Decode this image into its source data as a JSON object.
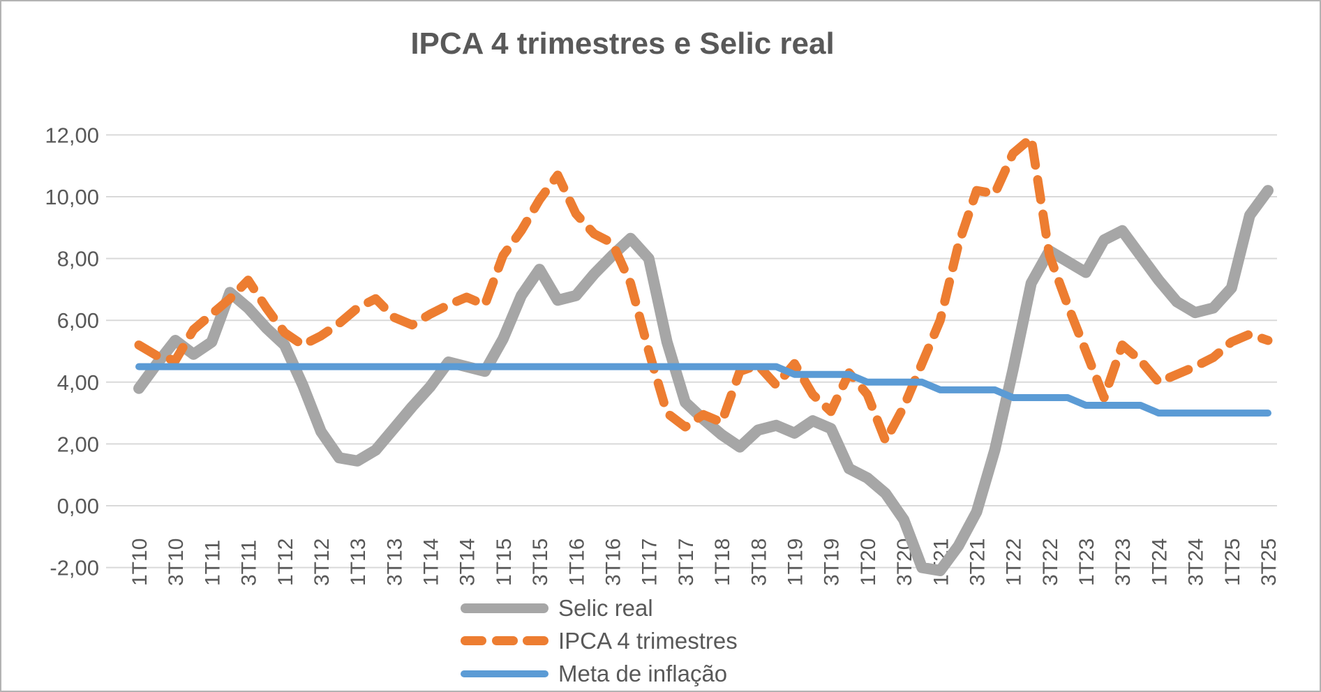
{
  "title": "IPCA 4 trimestres e Selic real",
  "colors": {
    "background": "#ffffff",
    "frame_border": "#b3b3b3",
    "grid": "#d9d9d9",
    "text": "#595959",
    "selic_real": "#a6a6a6",
    "ipca": "#ed7d31",
    "meta": "#5b9bd5"
  },
  "chart_data": {
    "type": "line",
    "title": "IPCA 4 trimestres e Selic real",
    "grid": true,
    "legend_position": "bottom",
    "ylim": [
      -2,
      12
    ],
    "y_tick_step": 2,
    "y_tick_labels": [
      "-2,00",
      "0,00",
      "2,00",
      "4,00",
      "6,00",
      "8,00",
      "10,00",
      "12,00"
    ],
    "x_label_every": 2,
    "categories": [
      "1T10",
      "2T10",
      "3T10",
      "4T10",
      "1T11",
      "2T11",
      "3T11",
      "4T11",
      "1T12",
      "2T12",
      "3T12",
      "4T12",
      "1T13",
      "2T13",
      "3T13",
      "4T13",
      "1T14",
      "2T14",
      "3T14",
      "4T14",
      "1T15",
      "2T15",
      "3T15",
      "4T15",
      "1T16",
      "2T16",
      "3T16",
      "4T16",
      "1T17",
      "2T17",
      "3T17",
      "4T17",
      "1T18",
      "2T18",
      "3T18",
      "4T18",
      "1T19",
      "2T19",
      "3T19",
      "4T19",
      "1T20",
      "2T20",
      "3T20",
      "4T20",
      "1T21",
      "2T21",
      "3T21",
      "4T21",
      "1T22",
      "2T22",
      "3T22",
      "4T22",
      "1T23",
      "2T23",
      "3T23",
      "4T23",
      "1T24",
      "2T24",
      "3T24",
      "4T24",
      "1T25",
      "2T25",
      "3T25"
    ],
    "series": [
      {
        "name": "Selic real",
        "color": "#a6a6a6",
        "style": "solid",
        "stroke_width": 16,
        "values": [
          3.8,
          4.6,
          5.35,
          4.9,
          5.3,
          6.9,
          6.4,
          5.75,
          5.2,
          3.9,
          2.4,
          1.55,
          1.45,
          1.8,
          2.5,
          3.2,
          3.85,
          4.65,
          4.5,
          4.35,
          5.4,
          6.8,
          7.65,
          6.65,
          6.8,
          7.5,
          8.1,
          8.65,
          8.0,
          5.3,
          3.35,
          2.8,
          2.3,
          1.9,
          2.45,
          2.6,
          2.35,
          2.75,
          2.5,
          1.2,
          0.9,
          0.4,
          -0.45,
          -2.0,
          -2.1,
          -1.3,
          -0.2,
          1.8,
          4.4,
          7.2,
          8.25,
          7.9,
          7.55,
          8.6,
          8.9,
          8.1,
          7.3,
          6.6,
          6.25,
          6.4,
          7.05,
          9.4,
          10.2
        ]
      },
      {
        "name": "IPCA 4 trimestres",
        "color": "#ed7d31",
        "style": "dashed",
        "stroke_width": 13,
        "values": [
          5.2,
          4.85,
          4.7,
          5.7,
          6.2,
          6.7,
          7.3,
          6.4,
          5.6,
          5.2,
          5.5,
          5.9,
          6.4,
          6.7,
          6.1,
          5.85,
          6.2,
          6.5,
          6.75,
          6.5,
          8.1,
          8.9,
          9.9,
          10.7,
          9.45,
          8.8,
          8.5,
          7.2,
          5.0,
          3.0,
          2.55,
          2.95,
          2.7,
          4.35,
          4.55,
          3.9,
          4.6,
          3.6,
          3.05,
          4.3,
          3.6,
          2.1,
          3.2,
          4.6,
          6.0,
          8.45,
          10.2,
          10.1,
          11.4,
          11.9,
          8.1,
          6.5,
          5.0,
          3.5,
          5.2,
          4.7,
          4.0,
          4.25,
          4.5,
          4.8,
          5.3,
          5.55,
          5.35
        ]
      },
      {
        "name": "Meta de inflação",
        "color": "#5b9bd5",
        "style": "solid",
        "stroke_width": 10,
        "values": [
          4.5,
          4.5,
          4.5,
          4.5,
          4.5,
          4.5,
          4.5,
          4.5,
          4.5,
          4.5,
          4.5,
          4.5,
          4.5,
          4.5,
          4.5,
          4.5,
          4.5,
          4.5,
          4.5,
          4.5,
          4.5,
          4.5,
          4.5,
          4.5,
          4.5,
          4.5,
          4.5,
          4.5,
          4.5,
          4.5,
          4.5,
          4.5,
          4.5,
          4.5,
          4.5,
          4.5,
          4.25,
          4.25,
          4.25,
          4.25,
          4.0,
          4.0,
          4.0,
          4.0,
          3.75,
          3.75,
          3.75,
          3.75,
          3.5,
          3.5,
          3.5,
          3.5,
          3.25,
          3.25,
          3.25,
          3.25,
          3.0,
          3.0,
          3.0,
          3.0,
          3.0,
          3.0,
          3.0
        ]
      }
    ]
  },
  "legend": {
    "items": [
      {
        "label": "Selic real"
      },
      {
        "label": "IPCA 4 trimestres"
      },
      {
        "label": "Meta de inflação"
      }
    ]
  }
}
